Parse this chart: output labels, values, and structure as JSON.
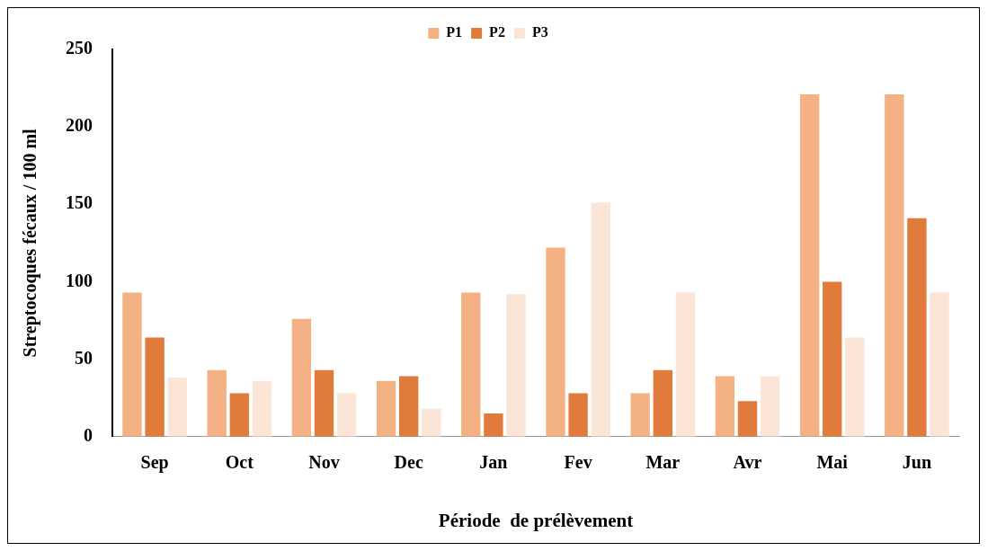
{
  "chart_data": {
    "type": "bar",
    "xlabel": "Période  de prélèvement",
    "ylabel": "Streptocoques fécaux / 100 ml",
    "categories": [
      "Sep",
      "Oct",
      "Nov",
      "Dec",
      "Jan",
      "Fev",
      "Mar",
      "Avr",
      "Mai",
      "Jun"
    ],
    "series": [
      {
        "name": "P1",
        "color": "#f4b183",
        "values": [
          93,
          43,
          76,
          36,
          93,
          122,
          28,
          39,
          221,
          221
        ]
      },
      {
        "name": "P2",
        "color": "#e07b3c",
        "values": [
          64,
          28,
          43,
          39,
          15,
          28,
          43,
          23,
          100,
          141
        ]
      },
      {
        "name": "P3",
        "color": "#fbe5d6",
        "values": [
          38,
          36,
          28,
          18,
          92,
          151,
          93,
          39,
          64,
          93
        ]
      }
    ],
    "ylim": [
      0,
      250
    ],
    "yticks": [
      0,
      50,
      100,
      150,
      200,
      250
    ],
    "grid": false,
    "legend": "top"
  }
}
